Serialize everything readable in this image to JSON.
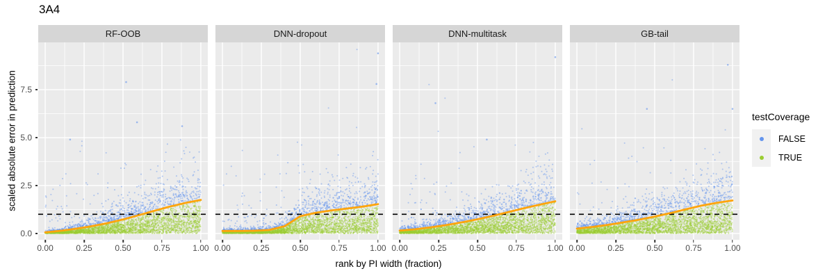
{
  "title": "3A4",
  "axes": {
    "x": {
      "title": "rank by PI width (fraction)",
      "tick_labels": [
        "0.00",
        "0.25",
        "0.50",
        "0.75",
        "1.00"
      ],
      "tick_values": [
        0,
        0.25,
        0.5,
        0.75,
        1
      ],
      "minor_values": [
        0.125,
        0.375,
        0.625,
        0.875
      ],
      "domain": [
        -0.045,
        1.045
      ]
    },
    "y": {
      "title": "scaled absolute error in prediction",
      "tick_labels": [
        "0.0",
        "2.5",
        "5.0",
        "7.5"
      ],
      "tick_values": [
        0,
        2.5,
        5,
        7.5
      ],
      "minor_values": [
        1.25,
        3.75,
        6.25,
        8.75
      ],
      "domain": [
        -0.33,
        9.97
      ]
    }
  },
  "reference_line": {
    "y": 1,
    "style": "dashed",
    "color": "#000000"
  },
  "legend": {
    "title": "testCoverage",
    "items": [
      {
        "label": "FALSE",
        "color": "#6495ED"
      },
      {
        "label": "TRUE",
        "color": "#9ACD32"
      }
    ]
  },
  "colors": {
    "panel_background": "#EBEBEB",
    "grid": "#FFFFFF",
    "strip_background": "#D6D6D6",
    "smooth_line": "#FFA40C",
    "point_false": "#6495ED",
    "point_true": "#9ACD32",
    "tick_text": "#4D4D4D"
  },
  "chart_data": {
    "type": "scatter",
    "facet_variable": "model",
    "point_color_variable": "testCoverage",
    "smooth_x": [
      0,
      0.1,
      0.2,
      0.3,
      0.4,
      0.5,
      0.6,
      0.7,
      0.8,
      0.9,
      1.0
    ],
    "facets": [
      {
        "label": "RF-OOB",
        "seed": 101,
        "n_points": 3800,
        "smooth_y": [
          0.06,
          0.14,
          0.25,
          0.38,
          0.54,
          0.73,
          0.95,
          1.18,
          1.4,
          1.59,
          1.75
        ],
        "outliers": [
          [
            0.52,
            7.9
          ],
          [
            0.59,
            5.8
          ],
          [
            0.16,
            4.9
          ],
          [
            0.88,
            5.6
          ]
        ]
      },
      {
        "label": "DNN-dropout",
        "seed": 202,
        "n_points": 3800,
        "smooth_y": [
          0.13,
          0.13,
          0.14,
          0.18,
          0.38,
          0.9,
          1.08,
          1.2,
          1.3,
          1.4,
          1.53
        ],
        "outliers": [
          [
            1.0,
            9.4
          ],
          [
            0.99,
            7.8
          ]
        ]
      },
      {
        "label": "DNN-multitask",
        "seed": 303,
        "n_points": 3800,
        "smooth_y": [
          0.15,
          0.22,
          0.32,
          0.44,
          0.58,
          0.74,
          0.92,
          1.12,
          1.32,
          1.5,
          1.68
        ],
        "outliers": [
          [
            1.0,
            9.2
          ],
          [
            0.23,
            6.8
          ],
          [
            0.56,
            4.9
          ]
        ]
      },
      {
        "label": "GB-tail",
        "seed": 404,
        "n_points": 3800,
        "smooth_y": [
          0.25,
          0.34,
          0.45,
          0.58,
          0.72,
          0.88,
          1.06,
          1.26,
          1.45,
          1.6,
          1.72
        ],
        "outliers": [
          [
            0.97,
            8.8
          ],
          [
            1.0,
            6.5
          ],
          [
            0.45,
            6.5
          ]
        ]
      }
    ]
  }
}
